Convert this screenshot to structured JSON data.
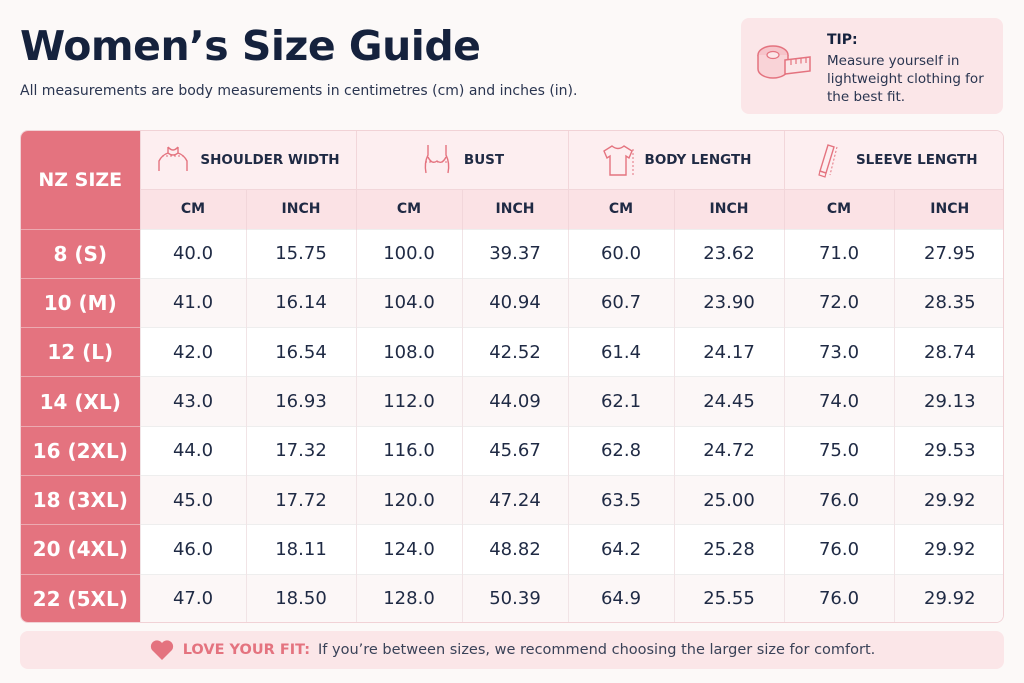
{
  "title": "Women’s Size Guide",
  "subtitle": "All measurements are body measurements in centimetres (cm) and inches (in).",
  "tip": {
    "title": "TIP:",
    "text": "Measure yourself in lightweight clothing for the best fit.",
    "icon": "tape-measure-icon"
  },
  "table": {
    "size_header": "NZ SIZE",
    "groups": [
      {
        "label": "SHOULDER WIDTH",
        "icon": "shoulder-icon"
      },
      {
        "label": "BUST",
        "icon": "bust-icon"
      },
      {
        "label": "BODY LENGTH",
        "icon": "tshirt-icon"
      },
      {
        "label": "SLEEVE LENGTH",
        "icon": "sleeve-icon"
      }
    ],
    "units": [
      "CM",
      "INCH",
      "CM",
      "INCH",
      "CM",
      "INCH",
      "CM",
      "INCH"
    ],
    "rows": [
      {
        "size": "8 (S)",
        "values": [
          "40.0",
          "15.75",
          "100.0",
          "39.37",
          "60.0",
          "23.62",
          "71.0",
          "27.95"
        ]
      },
      {
        "size": "10 (M)",
        "values": [
          "41.0",
          "16.14",
          "104.0",
          "40.94",
          "60.7",
          "23.90",
          "72.0",
          "28.35"
        ]
      },
      {
        "size": "12 (L)",
        "values": [
          "42.0",
          "16.54",
          "108.0",
          "42.52",
          "61.4",
          "24.17",
          "73.0",
          "28.74"
        ]
      },
      {
        "size": "14 (XL)",
        "values": [
          "43.0",
          "16.93",
          "112.0",
          "44.09",
          "62.1",
          "24.45",
          "74.0",
          "29.13"
        ]
      },
      {
        "size": "16 (2XL)",
        "values": [
          "44.0",
          "17.32",
          "116.0",
          "45.67",
          "62.8",
          "24.72",
          "75.0",
          "29.53"
        ]
      },
      {
        "size": "18 (3XL)",
        "values": [
          "45.0",
          "17.72",
          "120.0",
          "47.24",
          "63.5",
          "25.00",
          "76.0",
          "29.92"
        ]
      },
      {
        "size": "20 (4XL)",
        "values": [
          "46.0",
          "18.11",
          "124.0",
          "48.82",
          "64.2",
          "25.28",
          "76.0",
          "29.92"
        ]
      },
      {
        "size": "22 (5XL)",
        "values": [
          "47.0",
          "18.50",
          "128.0",
          "50.39",
          "64.9",
          "25.55",
          "76.0",
          "29.92"
        ]
      }
    ]
  },
  "footer": {
    "label": "LOVE YOUR FIT:",
    "text": "If you’re between sizes, we recommend choosing the larger size for comfort.",
    "icon": "heart-icon"
  },
  "colors": {
    "accent": "#e4737f",
    "header_bg": "#fdeef0",
    "unit_bg": "#fbe2e5",
    "title": "#15223d"
  }
}
